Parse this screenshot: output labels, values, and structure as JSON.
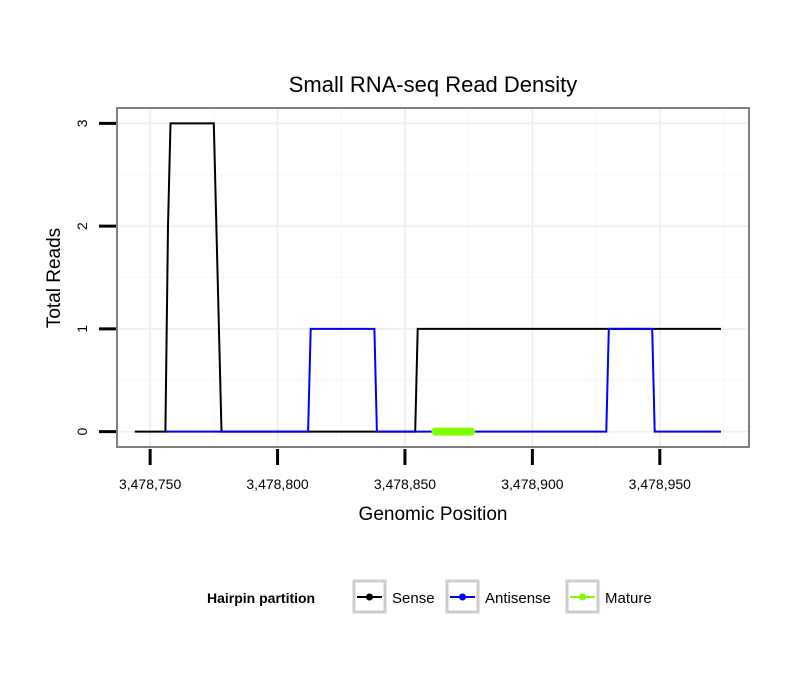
{
  "chart_data": {
    "type": "line",
    "title": "Small RNA-seq Read Density",
    "xlabel": "Genomic Position",
    "ylabel": "Total Reads",
    "xlim": [
      3478737,
      3478985
    ],
    "ylim": [
      -0.15,
      3.15
    ],
    "x_ticks": [
      3478750,
      3478800,
      3478850,
      3478900,
      3478950
    ],
    "x_tick_labels": [
      "3,478,750",
      "3,478,800",
      "3,478,850",
      "3,478,900",
      "3,478,950"
    ],
    "y_ticks": [
      0,
      1,
      2,
      3
    ],
    "y_tick_labels": [
      "0",
      "1",
      "2",
      "3"
    ],
    "grid": true,
    "legend": {
      "title": "Hairpin partition",
      "position": "bottom",
      "entries": [
        "Sense",
        "Antisense",
        "Mature"
      ]
    },
    "series": [
      {
        "name": "Sense",
        "color": "#000000",
        "x": [
          3478744,
          3478756,
          3478757,
          3478758,
          3478775,
          3478778,
          3478854,
          3478855,
          3478974
        ],
        "y": [
          0,
          0,
          2,
          3,
          3,
          0,
          0,
          1,
          1
        ]
      },
      {
        "name": "Antisense",
        "color": "#0000ff",
        "x": [
          3478756,
          3478812,
          3478813,
          3478838,
          3478839,
          3478929,
          3478930,
          3478947,
          3478948,
          3478974
        ],
        "y": [
          0,
          0,
          1,
          1,
          0,
          0,
          1,
          1,
          0,
          0
        ]
      },
      {
        "name": "Mature",
        "color": "#7fff00",
        "x": [
          3478862,
          3478876
        ],
        "y": [
          0,
          0
        ]
      }
    ]
  }
}
